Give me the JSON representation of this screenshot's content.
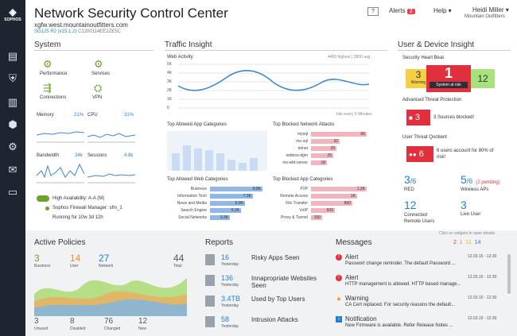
{
  "app": {
    "title": "Network Security Control Center",
    "host": "xgfw.west.mountainoutfitters.com",
    "model": "SG125 R2 (v15.1.2)",
    "serial": "C1200114EE2ZE5C",
    "logo": "SOPHOS"
  },
  "topbar": {
    "help_icon": "?",
    "alerts_label": "Alerts",
    "alerts_count": "2",
    "help_label": "Help",
    "user_name": "Heidi Miller",
    "user_org": "Mountain Outfitters"
  },
  "system": {
    "title": "System",
    "widgets": [
      {
        "label": "Performance"
      },
      {
        "label": "Services"
      },
      {
        "label": "Connections"
      },
      {
        "label": "VPN"
      }
    ],
    "memory_label": "Memory",
    "memory_value": "21%",
    "cpu_label": "CPU",
    "cpu_value": "31%",
    "bandwidth_label": "Bandwidth",
    "bandwidth_value": "34k",
    "sessions_label": "Sessions",
    "sessions_value": "4.8k",
    "ha_label": "High Availability: A-A (M)",
    "manager_label": "Sophos Firewall Manager: sfm_1",
    "uptime": "Running for 10w 3d 12h"
  },
  "traffic": {
    "title": "Traffic Insight",
    "web_activity_label": "Web Activity",
    "web_activity_stat": "4400 highest | 2800 avg",
    "hits_note": "hits every 5 Minutes",
    "yticks": [
      "5K",
      "4K",
      "3K",
      "2K",
      "1K",
      "0"
    ],
    "app_cat_label": "Top Allowed App Categories",
    "blocked_attacks_label": "Top Blocked Network Attacks",
    "blocked_attacks": [
      {
        "name": "mysql",
        "value": "65"
      },
      {
        "name": "ms-sql",
        "value": "32"
      },
      {
        "name": "telnet",
        "value": "29"
      },
      {
        "name": "netbios-dgm",
        "value": "25"
      },
      {
        "name": "ms-wbt-server",
        "value": "18"
      }
    ],
    "web_cat_label": "Top Allowed Web Categories",
    "web_cats": [
      {
        "name": "Business",
        "value": "8.8K"
      },
      {
        "name": "Information Tech",
        "value": "7.3K"
      },
      {
        "name": "News and Media",
        "value": "5.9K"
      },
      {
        "name": "Search Engine",
        "value": "5.2K"
      },
      {
        "name": "Social Networks",
        "value": "3.3K"
      }
    ],
    "blocked_app_label": "Top Blocked App Categories",
    "blocked_apps": [
      {
        "name": "P2P",
        "value": "1.2K"
      },
      {
        "name": "Remote Access",
        "value": "1K"
      },
      {
        "name": "File Transfer",
        "value": "890"
      },
      {
        "name": "VoIP",
        "value": "500"
      },
      {
        "name": "Proxy & Tunnel",
        "value": "150"
      }
    ]
  },
  "user": {
    "title": "User & Device Insight",
    "heartbeat_label": "Security Heart Beat",
    "hb_warning": "3",
    "hb_warning_label": "Warning",
    "hb_risk": "1",
    "hb_risk_label": "System at risk",
    "hb_ok": "12",
    "atp_label": "Advanced Threat Protection",
    "atp_count": "3",
    "atp_text": "3 Sources blocked!",
    "utq_label": "User Threat Quotient",
    "utq_count": "6",
    "utq_text": "6 users account for 80% of risk!",
    "red_value": "3",
    "red_total": "/6",
    "red_label": "RED",
    "wap_value": "5",
    "wap_total": "/6",
    "wap_pending": "(2 pending)",
    "wap_label": "Wireless APs",
    "remote_value": "12",
    "remote_label": "Connected Remote Users",
    "live_value": "3",
    "live_label": "Live User",
    "click_hint": "Click on widgets to open details"
  },
  "policies": {
    "title": "Active Policies",
    "stats": [
      {
        "value": "3",
        "label": "Business"
      },
      {
        "value": "14",
        "label": "User"
      },
      {
        "value": "27",
        "label": "Network"
      },
      {
        "value": "44",
        "label": "Total"
      }
    ],
    "bottom": [
      {
        "value": "3",
        "label": "Unused"
      },
      {
        "value": "8",
        "label": "Disabled"
      },
      {
        "value": "76",
        "label": "Changed"
      },
      {
        "value": "12",
        "label": "New"
      }
    ]
  },
  "reports": {
    "title": "Reports",
    "items": [
      {
        "value": "16",
        "sub": "Yesterday",
        "label": "Risky Apps Seen"
      },
      {
        "value": "136",
        "sub": "Yesterday",
        "label": "Innapropriate Websites Seen"
      },
      {
        "value": "3.4TB",
        "sub": "Yesterday",
        "label": "Used by Top Users"
      },
      {
        "value": "58",
        "sub": "Yesterday",
        "label": "Intrusion Attacks"
      }
    ]
  },
  "messages": {
    "title": "Messages",
    "counts": [
      "2",
      "1",
      "11",
      "14"
    ],
    "items": [
      {
        "type": "Alert",
        "time": "12.03.15 - 12:30",
        "text": "Passwort change reminder. The default Password ..."
      },
      {
        "type": "Alert",
        "time": "12.03.15 - 12:30",
        "text": "HTTP management is allowed. HTTP based manage..."
      },
      {
        "type": "Warning",
        "time": "12.03.15 - 12:30",
        "text": "CA Cert replaced. For security reasons the default..."
      },
      {
        "type": "Notification",
        "time": "12.03.15 - 12:30",
        "text": "New Firmware is available. Refer Release Notes ..."
      }
    ]
  }
}
